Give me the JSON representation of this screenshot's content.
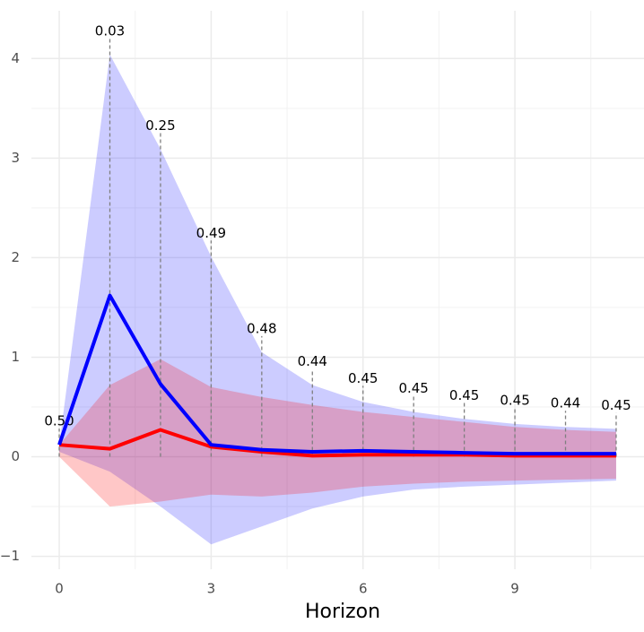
{
  "chart_data": {
    "type": "line",
    "xlabel": "Horizon",
    "x": [
      0,
      1,
      2,
      3,
      4,
      5,
      6,
      7,
      8,
      9,
      10,
      11
    ],
    "xlim": [
      -0.55,
      11.55
    ],
    "xticks": [
      0,
      3,
      6,
      9
    ],
    "ylim": [
      -1.13,
      4.48
    ],
    "yticks": [
      {
        "value": -1,
        "label": "−1"
      },
      0,
      1,
      2,
      3,
      4
    ],
    "grid": true,
    "minor_grid": true,
    "series": [
      {
        "color": "#0000ff",
        "values": [
          0.12,
          1.62,
          0.73,
          0.12,
          0.07,
          0.05,
          0.06,
          0.05,
          0.04,
          0.03,
          0.03,
          0.03
        ],
        "upper": [
          0.12,
          4.04,
          3.09,
          2.01,
          1.05,
          0.72,
          0.55,
          0.45,
          0.38,
          0.33,
          0.3,
          0.28
        ],
        "lower": [
          0.05,
          -0.15,
          -0.5,
          -0.88,
          -0.7,
          -0.52,
          -0.4,
          -0.33,
          -0.3,
          -0.28,
          -0.26,
          -0.24
        ]
      },
      {
        "color": "#ff0000",
        "values": [
          0.12,
          0.08,
          0.27,
          0.1,
          0.05,
          0.01,
          0.02,
          0.02,
          0.02,
          0.01,
          0.01,
          0.01
        ],
        "upper": [
          0.12,
          0.72,
          0.98,
          0.7,
          0.6,
          0.52,
          0.45,
          0.4,
          0.35,
          0.3,
          0.27,
          0.25
        ],
        "lower": [
          0.0,
          -0.5,
          -0.45,
          -0.38,
          -0.4,
          -0.36,
          -0.3,
          -0.27,
          -0.25,
          -0.24,
          -0.23,
          -0.22
        ]
      }
    ],
    "annotations": [
      "0.50",
      "0.03",
      "0.25",
      "0.49",
      "0.48",
      "0.44",
      "0.45",
      "0.45",
      "0.45",
      "0.45",
      "0.44",
      "0.45"
    ]
  }
}
